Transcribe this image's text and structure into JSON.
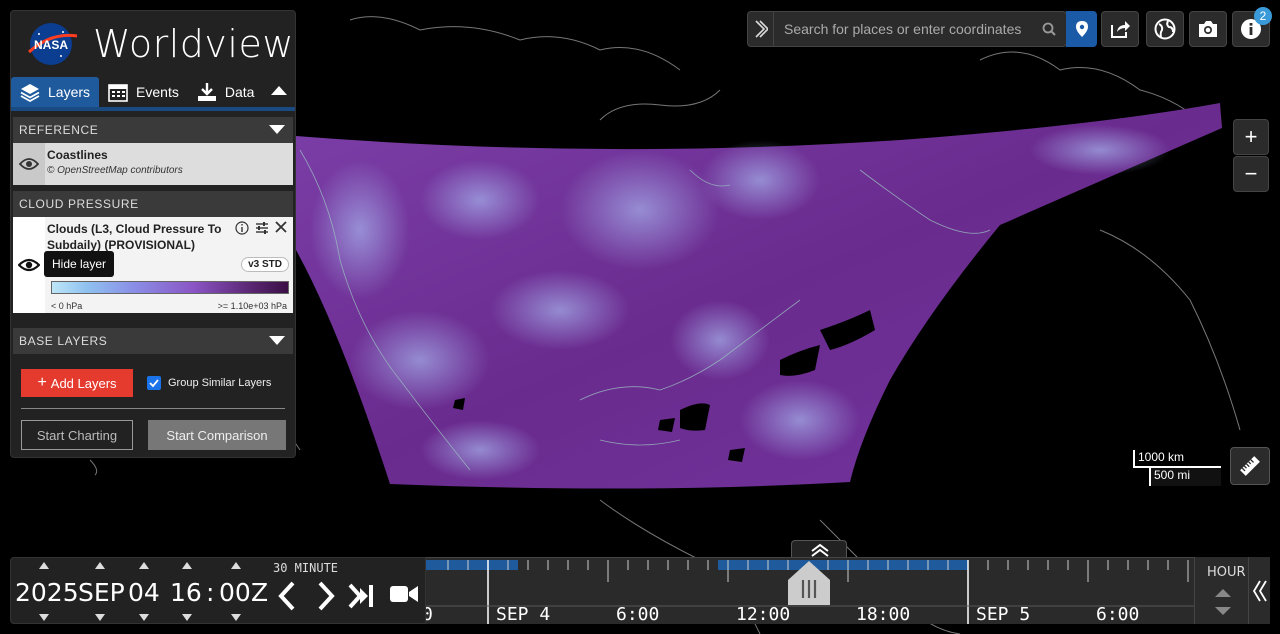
{
  "app": {
    "title": "Worldview",
    "logo_text": "NASA"
  },
  "tabs": [
    {
      "label": "Layers",
      "icon": "layers-icon",
      "active": true
    },
    {
      "label": "Events",
      "icon": "calendar-icon",
      "active": false
    },
    {
      "label": "Data",
      "icon": "download-icon",
      "active": false
    }
  ],
  "sections": {
    "reference": {
      "title": "REFERENCE",
      "layer": {
        "title": "Coastlines",
        "attribution": "© OpenStreetMap contributors"
      }
    },
    "cloud_pressure": {
      "title": "CLOUD PRESSURE",
      "layer": {
        "title_line1": "Clouds (L3, Cloud Pressure To",
        "title_line2": "Subdaily) (PROVISIONAL)",
        "version": "v3 STD",
        "legend_min": "< 0 hPa",
        "legend_max": ">= 1.10e+03 hPa"
      }
    },
    "base": {
      "title": "BASE LAYERS"
    }
  },
  "tooltip": "Hide layer",
  "buttons": {
    "add_layers": "Add Layers",
    "group_similar": "Group Similar Layers",
    "group_similar_checked": true,
    "start_charting": "Start Charting",
    "start_comparison": "Start Comparison"
  },
  "search": {
    "placeholder": "Search for places or enter coordinates"
  },
  "toolbar": {
    "info_badge": "2"
  },
  "zoom": {
    "in": "+",
    "out": "−"
  },
  "scale": {
    "km": "1000 km",
    "mi": "500 mi"
  },
  "date": {
    "year": "2025",
    "month": "SEP",
    "day": "04",
    "hour": "16",
    "sep": ":",
    "minute": "00",
    "zone": "Z",
    "interval": "30 MINUTE"
  },
  "timeline": {
    "zoom_level": "HOUR",
    "labels": [
      "0",
      "SEP 4",
      "6:00",
      "12:00",
      "18:00",
      "SEP 5",
      "6:00"
    ]
  },
  "colors": {
    "accent": "#1f5b9c",
    "add_button": "#e53b2f",
    "data_available": "#1f5b9c"
  }
}
